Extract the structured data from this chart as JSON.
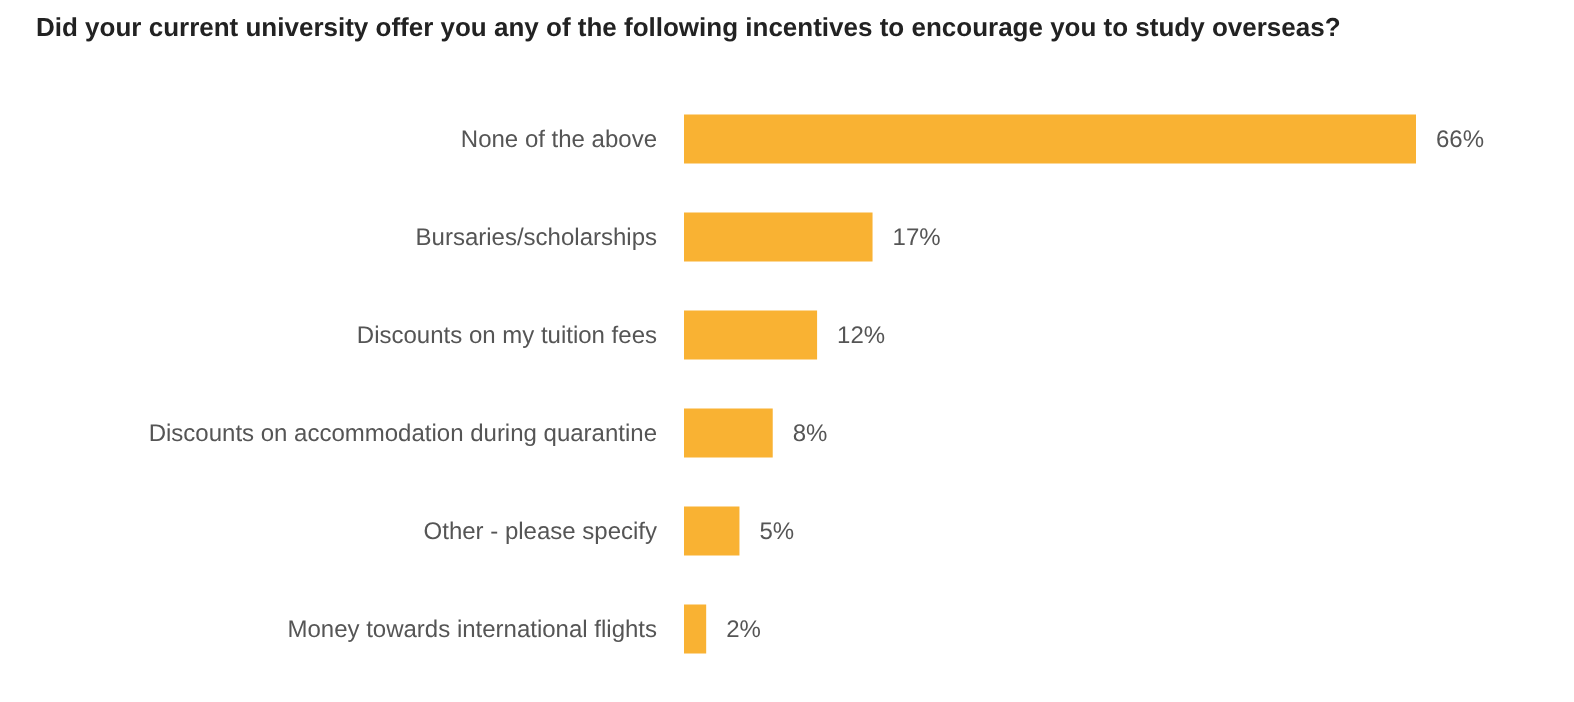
{
  "chart_data": {
    "type": "bar",
    "orientation": "horizontal",
    "title": "Did your current university offer you any of the following incentives to encourage you to study overseas?",
    "categories": [
      "None of the above",
      "Bursaries/scholarships",
      "Discounts on my tuition fees",
      "Discounts on accommodation during quarantine",
      "Other - please specify",
      "Money towards international flights"
    ],
    "values": [
      66,
      17,
      12,
      8,
      5,
      2
    ],
    "value_labels": [
      "66%",
      "17%",
      "12%",
      "8%",
      "5%",
      "2%"
    ],
    "color": "#f9b233"
  }
}
